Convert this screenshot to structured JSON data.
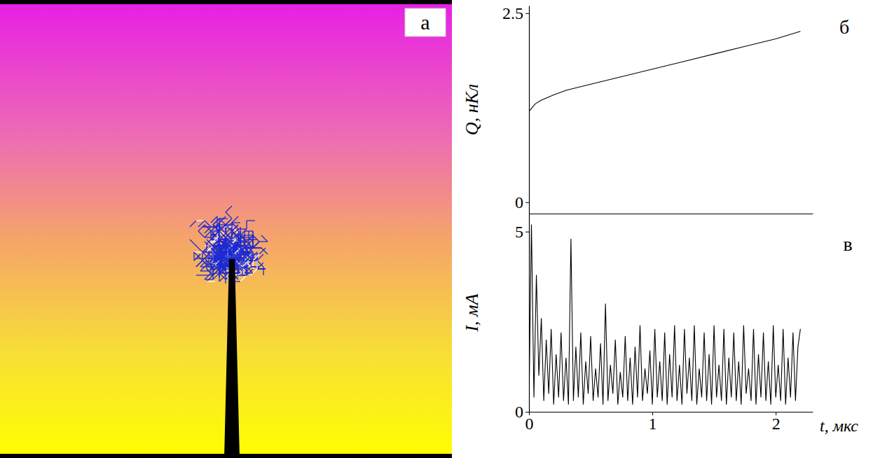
{
  "panel_a": {
    "label": "а"
  },
  "chart_data": [
    {
      "type": "line",
      "title": "б",
      "ylabel": "Q, нКл",
      "x": [
        0,
        0.05,
        0.1,
        0.2,
        0.3,
        0.5,
        0.75,
        1,
        1.25,
        1.5,
        1.75,
        2,
        2.2
      ],
      "values": [
        1.2,
        1.3,
        1.35,
        1.42,
        1.48,
        1.56,
        1.66,
        1.76,
        1.86,
        1.96,
        2.06,
        2.16,
        2.26
      ],
      "color": "#000000",
      "xlim": [
        0,
        2.3
      ],
      "ylim": [
        -0.15,
        2.6
      ],
      "yticks": [
        0,
        2.5
      ],
      "tick_labels": "y"
    },
    {
      "type": "line",
      "title": "в",
      "ylabel": "I, мА",
      "xlabel": "t, мкс",
      "x": [
        0,
        0.02,
        0.04,
        0.06,
        0.08,
        0.1,
        0.12,
        0.14,
        0.16,
        0.18,
        0.2,
        0.22,
        0.24,
        0.26,
        0.28,
        0.3,
        0.32,
        0.34,
        0.36,
        0.38,
        0.4,
        0.42,
        0.44,
        0.46,
        0.48,
        0.5,
        0.52,
        0.54,
        0.56,
        0.58,
        0.6,
        0.62,
        0.64,
        0.66,
        0.68,
        0.7,
        0.72,
        0.74,
        0.76,
        0.78,
        0.8,
        0.82,
        0.84,
        0.86,
        0.88,
        0.9,
        0.92,
        0.94,
        0.96,
        0.98,
        1,
        1.02,
        1.04,
        1.06,
        1.08,
        1.1,
        1.12,
        1.14,
        1.16,
        1.18,
        1.2,
        1.22,
        1.24,
        1.26,
        1.28,
        1.3,
        1.32,
        1.34,
        1.36,
        1.38,
        1.4,
        1.42,
        1.44,
        1.46,
        1.48,
        1.5,
        1.52,
        1.54,
        1.56,
        1.58,
        1.6,
        1.62,
        1.64,
        1.66,
        1.68,
        1.7,
        1.72,
        1.74,
        1.76,
        1.78,
        1.8,
        1.82,
        1.84,
        1.86,
        1.88,
        1.9,
        1.92,
        1.94,
        1.96,
        1.98,
        2,
        2.02,
        2.04,
        2.06,
        2.08,
        2.1,
        2.12,
        2.14,
        2.16,
        2.18,
        2.2
      ],
      "values": [
        0.3,
        5.2,
        0.4,
        3.8,
        1.0,
        2.6,
        0.3,
        2.0,
        0.5,
        2.3,
        0.2,
        1.6,
        0.4,
        2.2,
        0.3,
        1.5,
        0.2,
        4.8,
        0.3,
        1.8,
        0.4,
        2.2,
        0.2,
        1.4,
        0.5,
        2.1,
        0.3,
        1.2,
        0.4,
        1.9,
        0.2,
        3.0,
        0.3,
        1.3,
        0.5,
        2.0,
        0.2,
        1.1,
        0.4,
        2.1,
        0.3,
        1.5,
        0.2,
        1.8,
        0.4,
        2.4,
        0.3,
        1.2,
        0.5,
        1.7,
        0.2,
        2.3,
        0.4,
        1.4,
        0.3,
        2.2,
        0.2,
        1.6,
        0.4,
        2.4,
        0.3,
        1.3,
        0.2,
        2.3,
        0.5,
        1.5,
        0.3,
        2.4,
        0.2,
        1.2,
        0.4,
        2.2,
        0.3,
        1.6,
        0.2,
        2.4,
        0.4,
        1.3,
        0.3,
        2.3,
        0.2,
        1.5,
        0.4,
        2.2,
        0.3,
        1.4,
        0.2,
        2.4,
        0.5,
        1.2,
        0.3,
        2.3,
        0.2,
        1.6,
        0.4,
        2.2,
        0.3,
        1.4,
        0.2,
        2.4,
        0.4,
        1.3,
        0.3,
        2.3,
        0.2,
        1.5,
        0.4,
        2.2,
        0.3,
        1.8,
        2.3
      ],
      "color": "#000000",
      "xlim": [
        0,
        2.3
      ],
      "xticks": [
        0,
        1,
        2
      ],
      "ylim": [
        0,
        5.5
      ],
      "yticks": [
        0,
        5
      ]
    }
  ]
}
